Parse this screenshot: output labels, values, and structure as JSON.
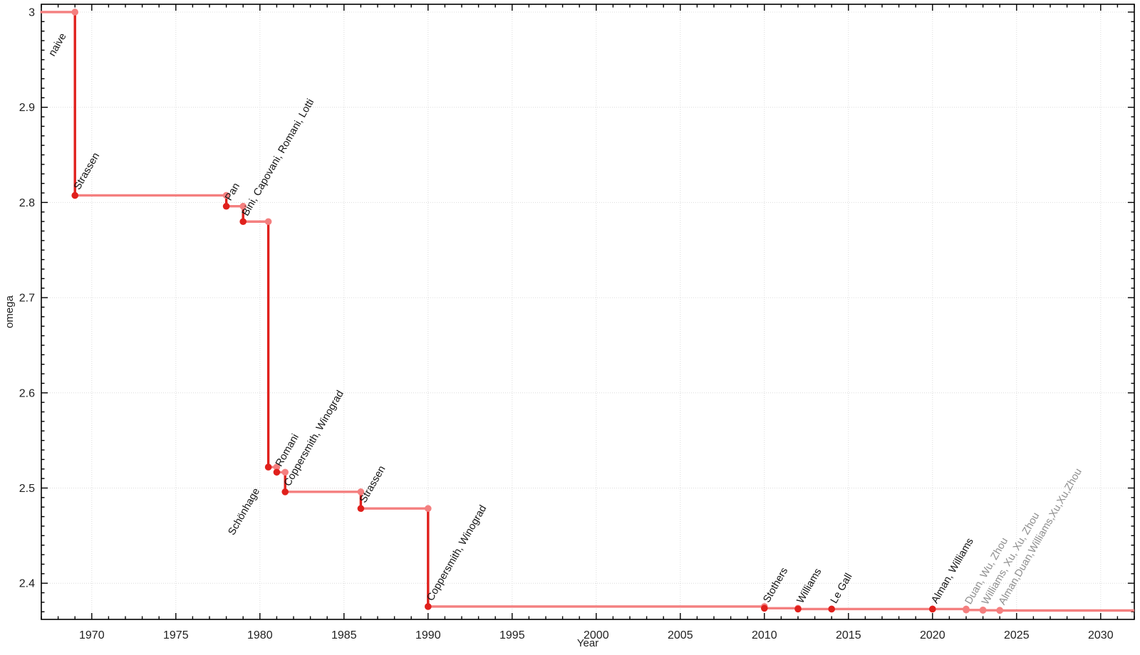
{
  "chart_data": {
    "type": "line",
    "subtype": "step-post",
    "title": "",
    "xlabel": "Year",
    "ylabel": "omega",
    "xlim": [
      1967,
      2032
    ],
    "ylim": [
      2.362,
      3.0082
    ],
    "x_major_ticks": [
      1970,
      1975,
      1980,
      1985,
      1990,
      1995,
      2000,
      2005,
      2010,
      2015,
      2020,
      2025,
      2030
    ],
    "x_minor_step": 1,
    "y_major_ticks": [
      {
        "value": 3.0,
        "label": "3"
      },
      {
        "value": 2.9,
        "label": "2.9"
      },
      {
        "value": 2.8,
        "label": "2.8"
      },
      {
        "value": 2.7,
        "label": "2.7"
      },
      {
        "value": 2.6,
        "label": "2.6"
      },
      {
        "value": 2.5,
        "label": "2.5"
      },
      {
        "value": 2.4,
        "label": "2.4"
      }
    ],
    "y_minor_step": 0.01,
    "grid": true,
    "legend": "none",
    "start": {
      "year": 1967,
      "omega": 3.0
    },
    "end_year": 2032,
    "points": [
      {
        "year": 1969,
        "omega": 2.8074,
        "label": "Strassen",
        "side": "above",
        "recent": false
      },
      {
        "year": 1978,
        "omega": 2.796,
        "label": "Pan",
        "side": "above",
        "recent": false
      },
      {
        "year": 1979,
        "omega": 2.7799,
        "label": "Bini, Capovani, Romani, Lotti",
        "side": "above",
        "recent": false
      },
      {
        "year": 1980.5,
        "omega": 2.522,
        "label": "Schönhage",
        "side": "below",
        "recent": false
      },
      {
        "year": 1981,
        "omega": 2.5166,
        "label": "Romani",
        "side": "above",
        "recent": false
      },
      {
        "year": 1981.5,
        "omega": 2.496,
        "label": "Coppersmith, Winograd",
        "side": "above",
        "recent": false
      },
      {
        "year": 1986,
        "omega": 2.4785,
        "label": "Strassen",
        "side": "above",
        "recent": false
      },
      {
        "year": 1990,
        "omega": 2.3755,
        "label": "Coppersmith, Winograd",
        "side": "above",
        "recent": false
      },
      {
        "year": 2010,
        "omega": 2.3737,
        "label": "Stothers",
        "side": "above",
        "recent": false
      },
      {
        "year": 2012,
        "omega": 2.3729,
        "label": "Williams",
        "side": "above",
        "recent": false
      },
      {
        "year": 2014,
        "omega": 2.37287,
        "label": "Le Gall",
        "side": "above",
        "recent": false
      },
      {
        "year": 2020,
        "omega": 2.37286,
        "label": "Alman, Williams",
        "side": "above",
        "recent": false
      },
      {
        "year": 2022,
        "omega": 2.37188,
        "label": "Duan, Wu, Zhou",
        "side": "above",
        "recent": true
      },
      {
        "year": 2023,
        "omega": 2.37155,
        "label": "Williams, Xu, Xu, Zhou",
        "side": "above",
        "recent": true
      },
      {
        "year": 2024,
        "omega": 2.37134,
        "label": "Alman,Duan,Williams,Xu,Xu,Zhou",
        "side": "above",
        "recent": true
      }
    ],
    "extra_labels": [
      {
        "text": "naive",
        "year": 1969,
        "omega": 3.0,
        "side": "below",
        "recent": false
      }
    ],
    "colors": {
      "line_step": "#f47f7f",
      "line_drop": "#e0201c",
      "marker_dark": "#e0201c",
      "marker_light": "#f47f7f",
      "label_dark": "#141414",
      "label_recent": "#8e8e8e",
      "grid": "#dcdcdc",
      "axis": "#000000",
      "tick_label": "#1f1f1f"
    }
  }
}
